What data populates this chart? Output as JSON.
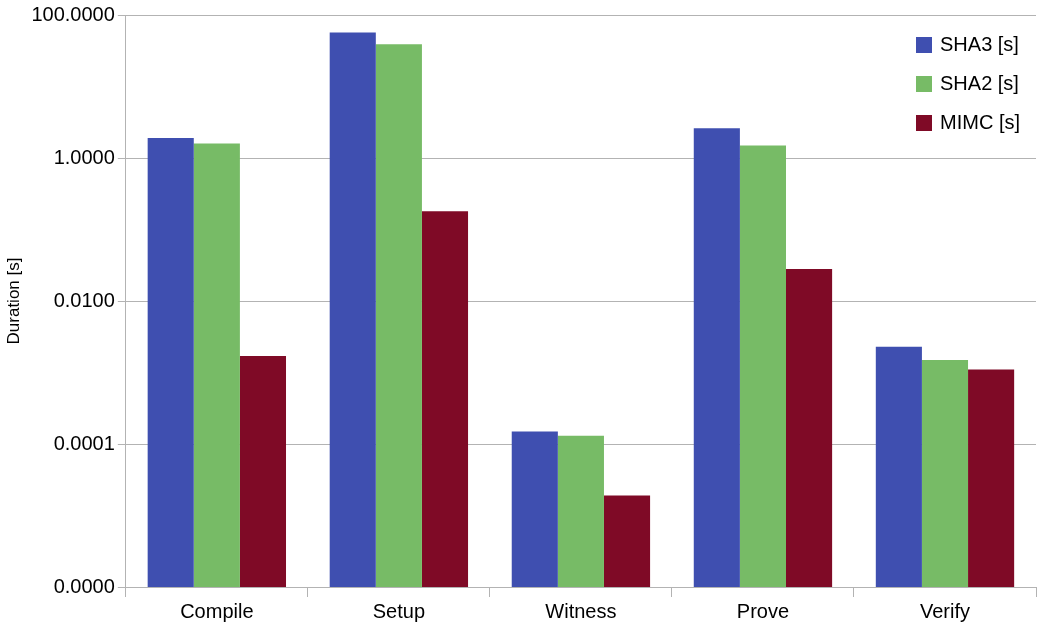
{
  "chart_data": {
    "type": "bar",
    "ylabel": "Duration [s]",
    "categories": [
      "Compile",
      "Setup",
      "Witness",
      "Prove",
      "Verify"
    ],
    "series": [
      {
        "name": "SHA3 [s]",
        "color": "#3f4fb0",
        "values": [
          1.9,
          57,
          0.00015,
          2.6,
          0.0023
        ]
      },
      {
        "name": "SHA2 [s]",
        "color": "#77bb66",
        "values": [
          1.6,
          39,
          0.00013,
          1.5,
          0.0015
        ]
      },
      {
        "name": "MIMC [s]",
        "color": "#7f0a26",
        "values": [
          0.0017,
          0.18,
          1.9e-05,
          0.028,
          0.0011
        ]
      }
    ],
    "log": "y",
    "ylim": [
      1e-06,
      100
    ],
    "yticks": [
      {
        "value": 1e-06,
        "label": "0.0000"
      },
      {
        "value": 0.0001,
        "label": "0.0001"
      },
      {
        "value": 0.01,
        "label": "0.0100"
      },
      {
        "value": 1,
        "label": "1.0000"
      },
      {
        "value": 100,
        "label": "100.0000"
      }
    ],
    "grid": "y",
    "legend": "top right"
  }
}
